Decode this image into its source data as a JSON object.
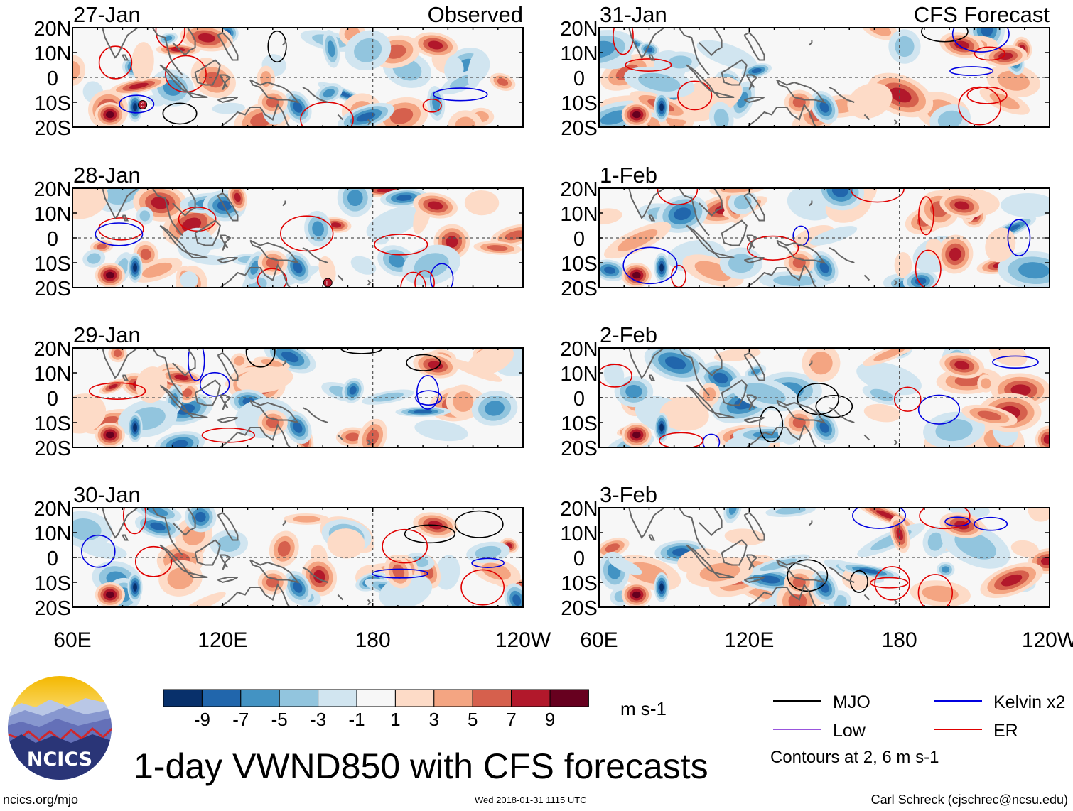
{
  "header": {
    "observed_label": "Observed",
    "forecast_label": "CFS Forecast"
  },
  "panels_observed": [
    {
      "date": "27-Jan",
      "storms": [
        {
          "x": 88,
          "y": -11,
          "label": "C"
        }
      ]
    },
    {
      "date": "28-Jan",
      "storms": [
        {
          "x": 162,
          "y": -18,
          "label": "F"
        }
      ]
    },
    {
      "date": "29-Jan",
      "storms": []
    },
    {
      "date": "30-Jan",
      "storms": []
    }
  ],
  "panels_forecast": [
    {
      "date": "31-Jan",
      "storms": []
    },
    {
      "date": "1-Feb",
      "storms": []
    },
    {
      "date": "2-Feb",
      "storms": []
    },
    {
      "date": "3-Feb",
      "storms": []
    }
  ],
  "chart_data": {
    "type": "heatmap",
    "title": "1-day VWND850 with CFS forecasts",
    "variable": "VWND850",
    "lon_range": [
      60,
      240
    ],
    "lat_range": [
      -20,
      20
    ],
    "lat_ticks": [
      "20N",
      "10N",
      "0",
      "10S",
      "20S"
    ],
    "lat_values": [
      20,
      10,
      0,
      -10,
      -20
    ],
    "lon_ticks": [
      "60E",
      "120E",
      "180",
      "120W"
    ],
    "lon_values": [
      60,
      120,
      180,
      240
    ],
    "colorbar": {
      "units": "m s-1",
      "tick_labels": [
        "-9",
        "-7",
        "-5",
        "-3",
        "-1",
        "1",
        "3",
        "5",
        "7",
        "9"
      ],
      "colors": [
        "#08306b",
        "#2166ac",
        "#4393c3",
        "#92c5de",
        "#d1e5f0",
        "#f7f7f7",
        "#fddbc7",
        "#f4a582",
        "#d6604d",
        "#b2182b",
        "#67001f"
      ]
    },
    "legend": [
      {
        "label": "MJO",
        "color": "#000000"
      },
      {
        "label": "Kelvin x2",
        "color": "#0000e0"
      },
      {
        "label": "Low",
        "color": "#9955dd"
      },
      {
        "label": "ER",
        "color": "#e00000"
      }
    ],
    "contours_note": "Contours at 2, 6 m s-1"
  },
  "footer": {
    "logo_text": "NCICS",
    "url": "ncics.org/mjo",
    "timestamp": "Wed 2018-01-31 1115 UTC",
    "credit": "Carl Schreck (cjschrec@ncsu.edu)"
  },
  "colors": {
    "zero_line": "#555555",
    "coast": "#666666"
  }
}
